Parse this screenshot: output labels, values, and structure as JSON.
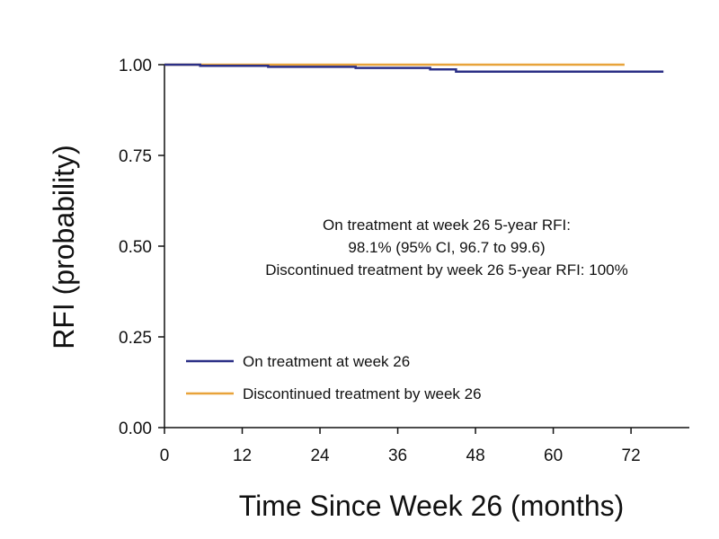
{
  "chart_data": {
    "type": "line",
    "xlabel": "Time Since Week 26 (months)",
    "ylabel": "RFI (probability)",
    "xlim": [
      0,
      81
    ],
    "ylim": [
      0,
      1
    ],
    "x_ticks": [
      0,
      12,
      24,
      36,
      48,
      60,
      72
    ],
    "x_tick_labels": [
      "0",
      "12",
      "24",
      "36",
      "48",
      "60",
      "72"
    ],
    "y_ticks": [
      0,
      0.25,
      0.5,
      0.75,
      1.0
    ],
    "y_tick_labels": [
      "0.00",
      "0.25",
      "0.50",
      "0.75",
      "1.00"
    ],
    "grid": false,
    "legend_position": "bottom-left",
    "annotation": [
      "On treatment at week 26 5-year RFI:",
      "98.1% (95% CI, 96.7 to 99.6)",
      "Discontinued treatment by week 26 5-year RFI: 100%"
    ],
    "series": [
      {
        "name": "On treatment at week 26",
        "color": "#2b2f86",
        "step": true,
        "points": [
          [
            0,
            1.0
          ],
          [
            5.5,
            1.0
          ],
          [
            5.5,
            0.997
          ],
          [
            16,
            0.997
          ],
          [
            16,
            0.994
          ],
          [
            29.5,
            0.994
          ],
          [
            29.5,
            0.991
          ],
          [
            41,
            0.991
          ],
          [
            41,
            0.987
          ],
          [
            45,
            0.987
          ],
          [
            45,
            0.981
          ],
          [
            77,
            0.981
          ]
        ]
      },
      {
        "name": "Discontinued treatment by week 26",
        "color": "#e8a33a",
        "step": true,
        "points": [
          [
            0,
            1.0
          ],
          [
            71,
            1.0
          ]
        ]
      }
    ]
  }
}
